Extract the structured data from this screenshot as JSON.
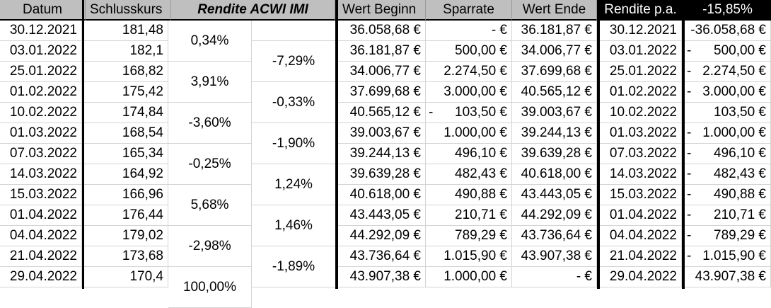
{
  "headers": {
    "datum": "Datum",
    "schlusskurs": "Schlusskurs",
    "rendite_acwi": "Rendite ACWI IMI",
    "wert_beginn": "Wert Beginn",
    "sparrate": "Sparrate",
    "wert_ende": "Wert Ende",
    "rendite_pa_label": "Rendite p.a.",
    "rendite_pa_value": "-15,85%"
  },
  "rows": [
    {
      "datum": "30.12.2021",
      "kurs": "181,48",
      "wert_beginn": "36.058,68 €",
      "sparrate_sign": "",
      "sparrate": "-   €",
      "wert_ende": "36.181,87 €",
      "cf_datum": "30.12.2021",
      "cf_sign": "",
      "cf_value": "-36.058,68 €"
    },
    {
      "datum": "03.01.2022",
      "kurs": "182,1",
      "wert_beginn": "36.181,87 €",
      "sparrate_sign": "",
      "sparrate": "500,00 €",
      "wert_ende": "34.006,77 €",
      "cf_datum": "03.01.2022",
      "cf_sign": "-",
      "cf_value": "500,00 €"
    },
    {
      "datum": "25.01.2022",
      "kurs": "168,82",
      "wert_beginn": "34.006,77 €",
      "sparrate_sign": "",
      "sparrate": "2.274,50 €",
      "wert_ende": "37.699,68 €",
      "cf_datum": "25.01.2022",
      "cf_sign": "-",
      "cf_value": "2.274,50 €"
    },
    {
      "datum": "01.02.2022",
      "kurs": "175,42",
      "wert_beginn": "37.699,68 €",
      "sparrate_sign": "",
      "sparrate": "3.000,00 €",
      "wert_ende": "40.565,12 €",
      "cf_datum": "01.02.2022",
      "cf_sign": "-",
      "cf_value": "3.000,00 €"
    },
    {
      "datum": "10.02.2022",
      "kurs": "174,84",
      "wert_beginn": "40.565,12 €",
      "sparrate_sign": "-",
      "sparrate": "103,50 €",
      "wert_ende": "39.003,67 €",
      "cf_datum": "10.02.2022",
      "cf_sign": "",
      "cf_value": "103,50 €"
    },
    {
      "datum": "01.03.2022",
      "kurs": "168,54",
      "wert_beginn": "39.003,67 €",
      "sparrate_sign": "",
      "sparrate": "1.000,00 €",
      "wert_ende": "39.244,13 €",
      "cf_datum": "01.03.2022",
      "cf_sign": "-",
      "cf_value": "1.000,00 €"
    },
    {
      "datum": "07.03.2022",
      "kurs": "165,34",
      "wert_beginn": "39.244,13 €",
      "sparrate_sign": "",
      "sparrate": "496,10 €",
      "wert_ende": "39.639,28 €",
      "cf_datum": "07.03.2022",
      "cf_sign": "-",
      "cf_value": "496,10 €"
    },
    {
      "datum": "14.03.2022",
      "kurs": "164,92",
      "wert_beginn": "39.639,28 €",
      "sparrate_sign": "",
      "sparrate": "482,43 €",
      "wert_ende": "40.618,00 €",
      "cf_datum": "14.03.2022",
      "cf_sign": "-",
      "cf_value": "482,43 €"
    },
    {
      "datum": "15.03.2022",
      "kurs": "166,96",
      "wert_beginn": "40.618,00 €",
      "sparrate_sign": "",
      "sparrate": "490,88 €",
      "wert_ende": "43.443,05 €",
      "cf_datum": "15.03.2022",
      "cf_sign": "-",
      "cf_value": "490,88 €"
    },
    {
      "datum": "01.04.2022",
      "kurs": "176,44",
      "wert_beginn": "43.443,05 €",
      "sparrate_sign": "",
      "sparrate": "210,71 €",
      "wert_ende": "44.292,09 €",
      "cf_datum": "01.04.2022",
      "cf_sign": "-",
      "cf_value": "210,71 €"
    },
    {
      "datum": "04.04.2022",
      "kurs": "179,02",
      "wert_beginn": "44.292,09 €",
      "sparrate_sign": "",
      "sparrate": "789,29 €",
      "wert_ende": "43.736,64 €",
      "cf_datum": "04.04.2022",
      "cf_sign": "-",
      "cf_value": "789,29 €"
    },
    {
      "datum": "21.04.2022",
      "kurs": "173,68",
      "wert_beginn": "43.736,64 €",
      "sparrate_sign": "",
      "sparrate": "1.015,90 €",
      "wert_ende": "43.907,38 €",
      "cf_datum": "21.04.2022",
      "cf_sign": "-",
      "cf_value": "1.015,90 €"
    },
    {
      "datum": "29.04.2022",
      "kurs": "170,4",
      "wert_beginn": "43.907,38 €",
      "sparrate_sign": "",
      "sparrate": "1.000,00 €",
      "wert_ende": "-   €",
      "cf_datum": "29.04.2022",
      "cf_sign": "",
      "cf_value": "43.907,38 €"
    }
  ],
  "rendite_left": [
    "0,34%",
    "3,91%",
    "-3,60%",
    "-0,25%",
    "5,68%",
    "-2,98%",
    "100,00%"
  ],
  "rendite_right": [
    "-7,29%",
    "-0,33%",
    "-1,90%",
    "1,24%",
    "1,46%",
    "-1,89%"
  ]
}
